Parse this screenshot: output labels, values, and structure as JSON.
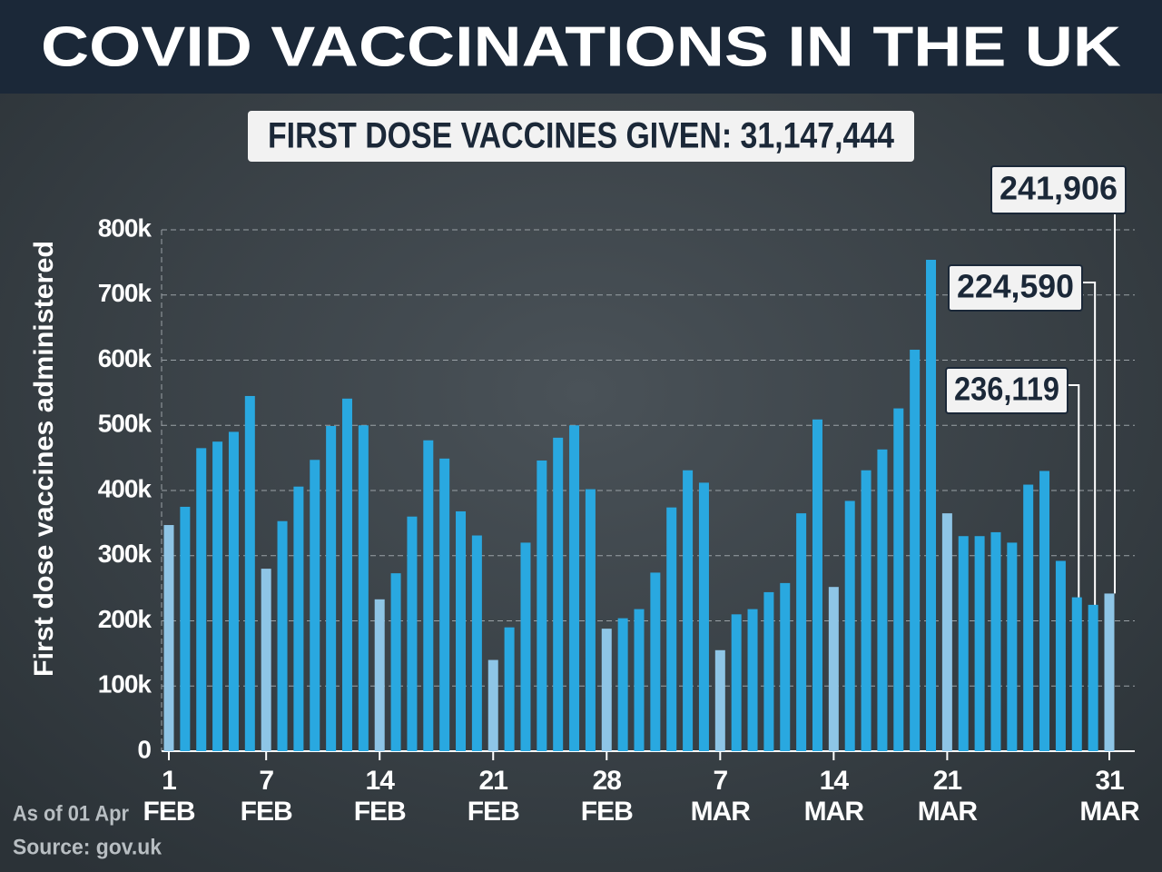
{
  "chart_data": {
    "type": "bar",
    "title": "COVID VACCINATIONS IN THE UK",
    "subtitle": "FIRST DOSE VACCINES GIVEN: 31,147,444",
    "y_label": "First dose vaccines administered",
    "note": "As of 01 Apr",
    "source": "Source: gov.uk",
    "categories": [
      "1\nFEB",
      null,
      null,
      null,
      null,
      null,
      "7\nFEB",
      null,
      null,
      null,
      null,
      null,
      null,
      "14\nFEB",
      null,
      null,
      null,
      null,
      null,
      null,
      "21\nFEB",
      null,
      null,
      null,
      null,
      null,
      null,
      "28\nFEB",
      null,
      null,
      null,
      null,
      null,
      null,
      "7\nMAR",
      null,
      null,
      null,
      null,
      null,
      null,
      "14\nMAR",
      null,
      null,
      null,
      null,
      null,
      null,
      "21\nMAR",
      null,
      null,
      null,
      null,
      null,
      null,
      null,
      null,
      null,
      "31\nMAR"
    ],
    "values": [
      347000,
      375000,
      465000,
      475000,
      490000,
      545000,
      280000,
      353000,
      406000,
      447000,
      499000,
      541000,
      500000,
      233000,
      273000,
      360000,
      477000,
      449000,
      368000,
      331000,
      140000,
      190000,
      320000,
      446000,
      481000,
      500000,
      402000,
      188000,
      204000,
      218000,
      274000,
      374000,
      431000,
      412000,
      155000,
      210000,
      218000,
      244000,
      258000,
      365000,
      509000,
      252000,
      384000,
      431000,
      463000,
      526000,
      616000,
      754000,
      365000,
      330000,
      330000,
      336000,
      320000,
      409000,
      430000,
      292000,
      236119,
      224590,
      241906
    ],
    "value_labels": [
      null,
      null,
      null,
      null,
      null,
      null,
      null,
      null,
      null,
      null,
      null,
      null,
      null,
      null,
      null,
      null,
      null,
      null,
      null,
      null,
      null,
      null,
      null,
      null,
      null,
      null,
      null,
      null,
      null,
      null,
      null,
      null,
      null,
      null,
      null,
      null,
      null,
      null,
      null,
      null,
      null,
      null,
      null,
      null,
      null,
      null,
      null,
      null,
      null,
      null,
      null,
      null,
      null,
      null,
      null,
      null,
      "236,119",
      "224,590",
      "241,906"
    ],
    "colors": [
      "#8ec5e6",
      "#29a8e0",
      "#29a8e0",
      "#29a8e0",
      "#29a8e0",
      "#29a8e0",
      "#8ec5e6",
      "#29a8e0",
      "#29a8e0",
      "#29a8e0",
      "#29a8e0",
      "#29a8e0",
      "#29a8e0",
      "#8ec5e6",
      "#29a8e0",
      "#29a8e0",
      "#29a8e0",
      "#29a8e0",
      "#29a8e0",
      "#29a8e0",
      "#8ec5e6",
      "#29a8e0",
      "#29a8e0",
      "#29a8e0",
      "#29a8e0",
      "#29a8e0",
      "#29a8e0",
      "#8ec5e6",
      "#29a8e0",
      "#29a8e0",
      "#29a8e0",
      "#29a8e0",
      "#29a8e0",
      "#29a8e0",
      "#8ec5e6",
      "#29a8e0",
      "#29a8e0",
      "#29a8e0",
      "#29a8e0",
      "#29a8e0",
      "#29a8e0",
      "#8ec5e6",
      "#29a8e0",
      "#29a8e0",
      "#29a8e0",
      "#29a8e0",
      "#29a8e0",
      "#29a8e0",
      "#8ec5e6",
      "#29a8e0",
      "#29a8e0",
      "#29a8e0",
      "#29a8e0",
      "#29a8e0",
      "#29a8e0",
      "#29a8e0",
      "#29a8e0",
      "#29a8e0",
      "#8ec5e6"
    ],
    "ylim": [
      0,
      800000
    ],
    "yticks": [
      {
        "value": 0,
        "label": "0"
      },
      {
        "value": 100000,
        "label": "100k"
      },
      {
        "value": 200000,
        "label": "200k"
      },
      {
        "value": 300000,
        "label": "300k"
      },
      {
        "value": 400000,
        "label": "400k"
      },
      {
        "value": 500000,
        "label": "500k"
      },
      {
        "value": 600000,
        "label": "600k"
      },
      {
        "value": 700000,
        "label": "700k"
      },
      {
        "value": 800000,
        "label": "800k"
      }
    ],
    "grid": true
  }
}
